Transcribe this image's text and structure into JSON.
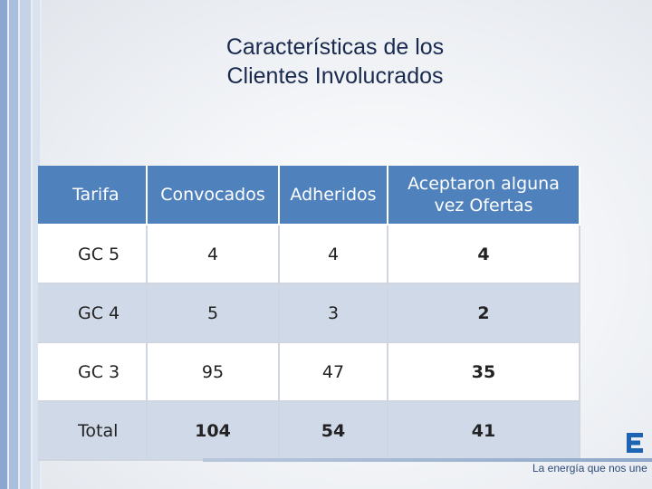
{
  "slide": {
    "title_line1": "Características de los",
    "title_line2": "Clientes Involucrados"
  },
  "table": {
    "headers": [
      "Tarifa",
      "Convocados",
      "Adheridos",
      "Aceptaron alguna vez Ofertas"
    ],
    "rows": [
      [
        "GC 5",
        "4",
        "4",
        "4"
      ],
      [
        "GC 4",
        "5",
        "3",
        "2"
      ],
      [
        "GC 3",
        "95",
        "47",
        "35"
      ],
      [
        "Total",
        "104",
        "54",
        "41"
      ]
    ]
  },
  "footer": {
    "tagline": "La energía que nos une"
  },
  "colors": {
    "header_bg": "#4f81bd",
    "title": "#1a2a4f",
    "band_row": "#d0d9e8"
  }
}
